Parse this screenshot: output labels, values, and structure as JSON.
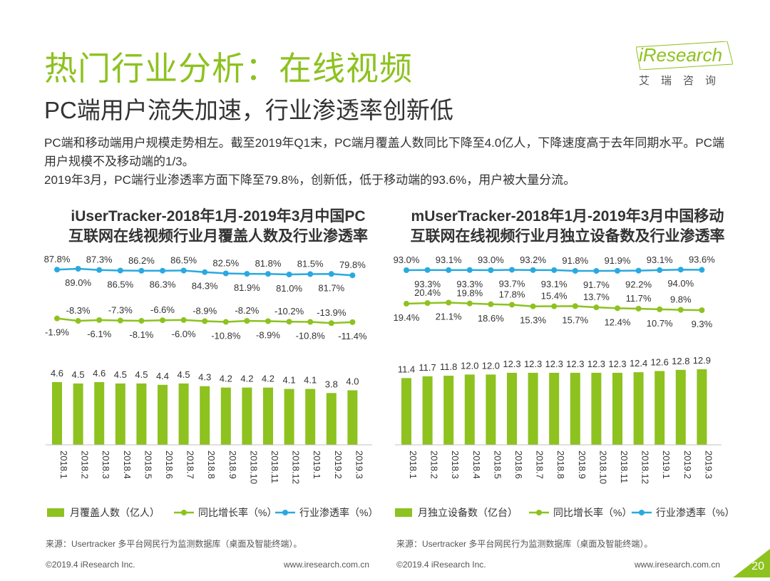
{
  "header": {
    "title": "热门行业分析：在线视频",
    "subtitle": "PC端用户流失加速，行业渗透率创新低",
    "logo_text": "iResearch",
    "logo_cn": "艾瑞咨询"
  },
  "summary": {
    "para1": "PC端和移动端用户规模走势相左。截至2019年Q1末，PC端月覆盖人数同比下降至4.0亿人，下降速度高于去年同期水平。PC端用户规模不及移动端的1/3。",
    "para2": "2019年3月，PC端行业渗透率方面下降至79.8%，创新低，低于移动端的93.6%，用户被大量分流。"
  },
  "colors": {
    "green": "#8DC21F",
    "blue": "#2AA9E0",
    "accent": "#8DC21F"
  },
  "chart_data": [
    {
      "type": "bar",
      "title_line1": "iUserTracker-2018年1月-2019年3月中国PC",
      "title_line2": "互联网在线视频行业月覆盖人数及行业渗透率",
      "categories": [
        "2018.1",
        "2018.2",
        "2018.3",
        "2018.4",
        "2018.5",
        "2018.6",
        "2018.7",
        "2018.8",
        "2018.9",
        "2018.10",
        "2018.11",
        "2018.12",
        "2019.1",
        "2019.2",
        "2019.3"
      ],
      "bars": {
        "name": "月覆盖人数（亿人）",
        "values": [
          4.6,
          4.5,
          4.6,
          4.5,
          4.5,
          4.4,
          4.5,
          4.3,
          4.2,
          4.2,
          4.2,
          4.1,
          4.1,
          3.8,
          4.0
        ]
      },
      "growth": {
        "name": "同比增长率（%）",
        "values": [
          -1.9,
          -8.3,
          -6.1,
          -7.3,
          -8.1,
          -6.6,
          -6.0,
          -8.9,
          -10.8,
          -8.2,
          -8.9,
          -10.2,
          -10.8,
          -13.9,
          -11.4
        ],
        "labels": [
          "-1.9%",
          "-8.3%",
          "-6.1%",
          "-7.3%",
          "-8.1%",
          "-6.6%",
          "-6.0%",
          "-8.9%",
          "-10.8%",
          "-8.2%",
          "-8.9%",
          "-10.2%",
          "-10.8%",
          "-13.9%",
          "-11.4%"
        ]
      },
      "penetration": {
        "name": "行业渗透率（%）",
        "values": [
          87.8,
          89.0,
          87.3,
          86.5,
          86.2,
          86.3,
          86.5,
          84.3,
          82.5,
          81.9,
          81.8,
          81.0,
          81.5,
          81.7,
          79.8
        ],
        "labels": [
          "87.8%",
          "89.0%",
          "87.3%",
          "86.5%",
          "86.2%",
          "86.3%",
          "86.5%",
          "84.3%",
          "82.5%",
          "81.9%",
          "81.8%",
          "81.0%",
          "81.5%",
          "81.7%",
          "79.8%"
        ]
      },
      "bar_labels": [
        "4.6",
        "4.5",
        "4.6",
        "4.5",
        "4.5",
        "4.4",
        "4.5",
        "4.3",
        "4.2",
        "4.2",
        "4.2",
        "4.1",
        "4.1",
        "3.8",
        "4.0"
      ],
      "legend": [
        "月覆盖人数（亿人）",
        "同比增长率（%）",
        "行业渗透率（%）"
      ],
      "source": "来源：Usertracker 多平台网民行为监测数据库（桌面及智能终端）。"
    },
    {
      "type": "bar",
      "title_line1": "mUserTracker-2018年1月-2019年3月中国移动",
      "title_line2": "互联网在线视频行业月独立设备数及行业渗透率",
      "categories": [
        "2018.1",
        "2018.2",
        "2018.3",
        "2018.4",
        "2018.5",
        "2018.6",
        "2018.7",
        "2018.8",
        "2018.9",
        "2018.10",
        "2018.11",
        "2018.12",
        "2019.1",
        "2019.2",
        "2019.3"
      ],
      "bars": {
        "name": "月独立设备数（亿台）",
        "values": [
          11.4,
          11.7,
          11.8,
          12.0,
          12.0,
          12.3,
          12.3,
          12.3,
          12.3,
          12.3,
          12.3,
          12.4,
          12.6,
          12.8,
          12.9
        ]
      },
      "growth": {
        "name": "同比增长率（%）",
        "values": [
          19.4,
          20.4,
          21.1,
          19.8,
          18.6,
          17.8,
          15.3,
          15.4,
          15.7,
          13.7,
          12.4,
          11.7,
          10.7,
          9.8,
          9.3
        ],
        "labels": [
          "19.4%",
          "20.4%",
          "21.1%",
          "19.8%",
          "18.6%",
          "17.8%",
          "15.3%",
          "15.4%",
          "15.7%",
          "13.7%",
          "12.4%",
          "11.7%",
          "10.7%",
          "9.8%",
          "9.3%"
        ]
      },
      "penetration": {
        "name": "行业渗透率（%）",
        "values": [
          93.0,
          93.3,
          93.1,
          93.3,
          93.0,
          93.7,
          93.2,
          93.1,
          91.8,
          91.7,
          91.9,
          92.2,
          93.1,
          94.0,
          93.6
        ],
        "labels": [
          "93.0%",
          "93.3%",
          "93.1%",
          "93.3%",
          "93.0%",
          "93.7%",
          "93.2%",
          "93.1%",
          "91.8%",
          "91.7%",
          "91.9%",
          "92.2%",
          "93.1%",
          "94.0%",
          "93.6%"
        ]
      },
      "bar_labels": [
        "11.4",
        "11.7",
        "11.8",
        "12.0",
        "12.0",
        "12.3",
        "12.3",
        "12.3",
        "12.3",
        "12.3",
        "12.3",
        "12.4",
        "12.6",
        "12.8",
        "12.9"
      ],
      "legend": [
        "月独立设备数（亿台）",
        "同比增长率（%）",
        "行业渗透率（%）"
      ],
      "source": "来源：Usertracker 多平台网民行为监测数据库（桌面及智能终端）。"
    }
  ],
  "footer": {
    "left_copyright": "©2019.4 iResearch Inc.",
    "left_url": "www.iresearch.com.cn",
    "right_copyright": "©2019.4 iResearch Inc.",
    "right_url": "www.iresearch.com.cn",
    "page_number": "20"
  }
}
